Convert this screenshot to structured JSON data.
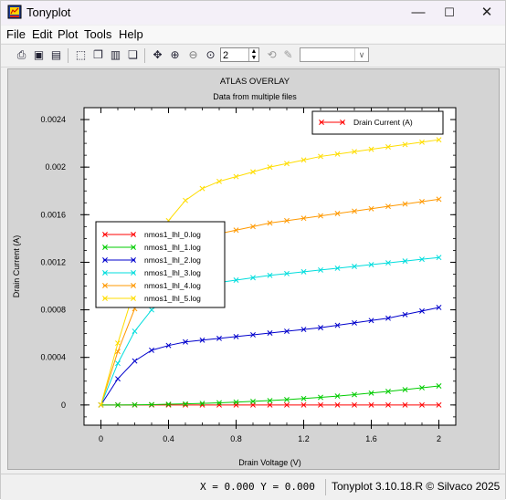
{
  "window": {
    "title": "Tonyplot",
    "minimize_glyph": "—",
    "maximize_glyph": "☐",
    "close_glyph": "✕"
  },
  "menu": {
    "items": [
      "File",
      "Edit",
      "Plot",
      "Tools",
      "Help"
    ]
  },
  "toolbar": {
    "icons": [
      "print-icon",
      "save-icon",
      "open-icon",
      "select-icon",
      "copy-icon",
      "paste-icon",
      "layers-icon",
      "pan-icon",
      "zoom-in-icon",
      "zoom-out-icon",
      "zoom-fit-icon",
      "redraw-icon",
      "edit-icon"
    ],
    "spin_value": "2",
    "combo_value": ""
  },
  "chart_data": {
    "type": "line",
    "title": "ATLAS OVERLAY",
    "subtitle": "Data from multiple files",
    "xlabel": "Drain Voltage (V)",
    "ylabel": "Drain Current (A)",
    "xlim": [
      -0.1,
      2.1
    ],
    "ylim": [
      -0.00017,
      0.0025
    ],
    "x_ticks": [
      0,
      0.4,
      0.8,
      1.2,
      1.6,
      2
    ],
    "x_tick_labels": [
      "0",
      "0.4",
      "0.8",
      "1.2",
      "1.6",
      "2"
    ],
    "y_ticks": [
      0,
      0.0004,
      0.0008,
      0.0012,
      0.0016,
      0.002,
      0.0024
    ],
    "y_tick_labels": [
      "0",
      "0.0004",
      "0.0008",
      "0.0012",
      "0.0016",
      "0.002",
      "0.0024"
    ],
    "grid": false,
    "legend_top_right": "Drain Current (A)",
    "legend_top_right_color": "#ff0000",
    "legend_position": "middle-left",
    "x": [
      0,
      0.1,
      0.2,
      0.3,
      0.4,
      0.5,
      0.6,
      0.7,
      0.8,
      0.9,
      1.0,
      1.1,
      1.2,
      1.3,
      1.4,
      1.5,
      1.6,
      1.7,
      1.8,
      1.9,
      2.0
    ],
    "series": [
      {
        "name": "nmos1_lhl_0.log",
        "color": "#ff0000",
        "values": [
          0,
          0,
          0,
          0,
          0,
          0,
          0,
          0,
          0,
          0,
          0,
          0,
          0,
          0,
          0,
          0,
          0,
          0,
          0,
          0,
          0
        ]
      },
      {
        "name": "nmos1_lhl_1.log",
        "color": "#00cc00",
        "values": [
          0,
          0,
          1e-06,
          3e-06,
          6e-06,
          9e-06,
          1.3e-05,
          1.8e-05,
          2.4e-05,
          3e-05,
          3.7e-05,
          4.5e-05,
          5.4e-05,
          6.4e-05,
          7.5e-05,
          8.7e-05,
          0.0001,
          0.000114,
          0.000129,
          0.000145,
          0.00016
        ]
      },
      {
        "name": "nmos1_lhl_2.log",
        "color": "#0000cc",
        "values": [
          0,
          0.00022,
          0.00037,
          0.00046,
          0.0005,
          0.00053,
          0.000545,
          0.00056,
          0.000575,
          0.00059,
          0.000605,
          0.00062,
          0.000635,
          0.00065,
          0.00067,
          0.00069,
          0.00071,
          0.00073,
          0.00076,
          0.00079,
          0.00082
        ]
      },
      {
        "name": "nmos1_lhl_3.log",
        "color": "#00dddd",
        "values": [
          0,
          0.00035,
          0.00062,
          0.0008,
          0.00091,
          0.00097,
          0.001005,
          0.00103,
          0.00105,
          0.00107,
          0.00109,
          0.001105,
          0.00112,
          0.001135,
          0.00115,
          0.001165,
          0.00118,
          0.001195,
          0.00121,
          0.001225,
          0.00124
        ]
      },
      {
        "name": "nmos1_lhl_4.log",
        "color": "#ff9900",
        "values": [
          0,
          0.00045,
          0.00081,
          0.00106,
          0.00123,
          0.00134,
          0.0014,
          0.00144,
          0.00147,
          0.0015,
          0.00153,
          0.00155,
          0.00157,
          0.00159,
          0.00161,
          0.00163,
          0.00165,
          0.00167,
          0.00169,
          0.00171,
          0.00173
        ]
      },
      {
        "name": "nmos1_lhl_5.log",
        "color": "#ffdd00",
        "values": [
          0,
          0.00052,
          0.00098,
          0.00132,
          0.00155,
          0.00172,
          0.00182,
          0.00188,
          0.00192,
          0.00196,
          0.002,
          0.00203,
          0.00206,
          0.00209,
          0.00211,
          0.00213,
          0.00215,
          0.00217,
          0.00219,
          0.00221,
          0.00223
        ]
      }
    ]
  },
  "status": {
    "coords": "X = 0.000 Y = 0.000",
    "version": "Tonyplot 3.10.18.R © Silvaco 2025"
  }
}
